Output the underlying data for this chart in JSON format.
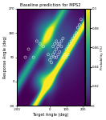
{
  "title": "Baseline prediction for MPS2",
  "xlabel": "Target Angle (deg)",
  "ylabel": "Response Angle (deg)",
  "cbar_label": "Probability (%)",
  "xlim": [
    -200,
    210
  ],
  "ylim": [
    -90,
    270
  ],
  "vmax": 0.1,
  "colormap": "viridis",
  "xticks": [
    -200,
    0,
    100,
    200
  ],
  "xtick_labels": [
    "-200",
    "0",
    "100",
    "200"
  ],
  "yticks": [
    -90,
    0,
    90,
    180,
    270
  ],
  "ytick_labels": [
    "-90",
    "0",
    "90",
    "180",
    "270"
  ],
  "circles": [
    [
      -150,
      90
    ],
    [
      -130,
      120
    ],
    [
      -100,
      90
    ],
    [
      -80,
      150
    ],
    [
      -60,
      140
    ],
    [
      -40,
      130
    ],
    [
      10,
      90
    ],
    [
      20,
      100
    ],
    [
      30,
      110
    ],
    [
      40,
      120
    ],
    [
      20,
      130
    ],
    [
      30,
      140
    ],
    [
      40,
      150
    ],
    [
      50,
      130
    ],
    [
      60,
      140
    ],
    [
      70,
      150
    ],
    [
      80,
      160
    ],
    [
      80,
      90
    ],
    [
      90,
      100
    ],
    [
      100,
      120
    ],
    [
      110,
      130
    ],
    [
      120,
      140
    ],
    [
      130,
      150
    ],
    [
      140,
      160
    ],
    [
      150,
      170
    ],
    [
      160,
      180
    ],
    [
      170,
      200
    ],
    [
      180,
      210
    ],
    [
      190,
      230
    ],
    [
      40,
      90
    ],
    [
      50,
      100
    ],
    [
      60,
      110
    ],
    [
      100,
      90
    ],
    [
      110,
      100
    ],
    [
      0,
      80
    ],
    [
      10,
      70
    ],
    [
      -10,
      100
    ],
    [
      30,
      90
    ],
    [
      50,
      140
    ],
    [
      70,
      130
    ]
  ]
}
